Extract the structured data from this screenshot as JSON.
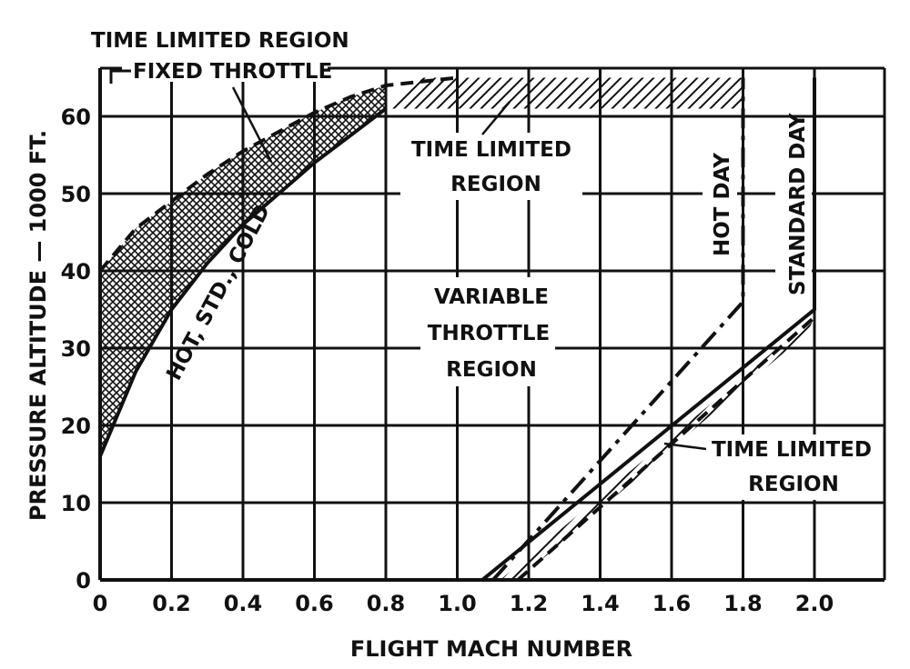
{
  "chart_data": {
    "type": "line",
    "xlabel": "FLIGHT MACH NUMBER",
    "ylabel": "PRESSURE ALTITUDE — 1000 FT.",
    "xlim": [
      0,
      2.2
    ],
    "ylim": [
      0,
      65
    ],
    "x_ticks": [
      "0",
      "0.2",
      "0.4",
      "0.6",
      "0.8",
      "1.0",
      "1.2",
      "1.4",
      "1.6",
      "1.8",
      "2.0"
    ],
    "y_ticks": [
      "0",
      "10",
      "20",
      "30",
      "40",
      "50",
      "60"
    ],
    "grid": true,
    "series": [
      {
        "name": "HOT, STD., COLD",
        "style": "solid",
        "points": [
          [
            0,
            16
          ],
          [
            0.1,
            27
          ],
          [
            0.2,
            35
          ],
          [
            0.3,
            41
          ],
          [
            0.4,
            46
          ],
          [
            0.5,
            50
          ],
          [
            0.6,
            54
          ],
          [
            0.7,
            57.5
          ],
          [
            0.8,
            61
          ]
        ]
      },
      {
        "name": "FIXED THROTTLE",
        "style": "dashed",
        "points": [
          [
            0,
            40
          ],
          [
            0.1,
            45.5
          ],
          [
            0.2,
            49
          ],
          [
            0.3,
            52.5
          ],
          [
            0.4,
            55.5
          ],
          [
            0.5,
            58
          ],
          [
            0.6,
            60.5
          ],
          [
            0.7,
            62.5
          ],
          [
            0.8,
            64
          ],
          [
            1.0,
            65
          ]
        ]
      },
      {
        "name": "HOT DAY",
        "style": "dashdot",
        "points": [
          [
            1.1,
            0
          ],
          [
            1.8,
            36
          ],
          [
            1.8,
            65
          ]
        ]
      },
      {
        "name": "STANDARD DAY",
        "style": "solid",
        "points": [
          [
            1.07,
            0
          ],
          [
            2.0,
            35
          ],
          [
            2.0,
            65
          ]
        ]
      },
      {
        "name": "TIME LIMITED REGION (lower boundary)",
        "style": "dashed",
        "points": [
          [
            1.17,
            0
          ],
          [
            2.0,
            34
          ]
        ]
      }
    ],
    "annotations": [
      "TIME LIMITED REGION",
      "FIXED THROTTLE",
      "TIME LIMITED REGION",
      "VARIABLE THROTTLE REGION",
      "HOT, STD., COLD",
      "HOT DAY",
      "STANDARD DAY",
      "TIME LIMITED REGION"
    ]
  },
  "labels": {
    "top_title": "TIME LIMITED REGION",
    "fixed_throttle": "FIXED THROTTLE",
    "tlr_top_1": "TIME LIMITED",
    "tlr_top_2": "REGION",
    "variable_1": "VARIABLE",
    "variable_2": "THROTTLE",
    "variable_3": "REGION",
    "curve_label": "HOT, STD., COLD",
    "hot_day": "HOT DAY",
    "standard_day": "STANDARD DAY",
    "tlr_bottom_1": "TIME LIMITED",
    "tlr_bottom_2": "REGION"
  }
}
